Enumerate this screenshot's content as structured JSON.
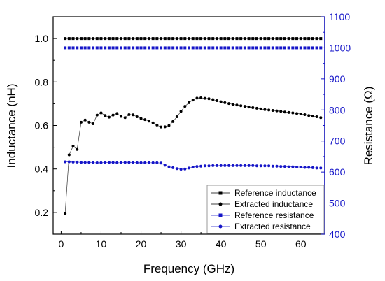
{
  "chart_data": {
    "type": "line",
    "xlabel": "Frequency (GHz)",
    "ylabel_left": "Inductance (nH)",
    "ylabel_right": "Resistance (Ω)",
    "xlim": [
      -2,
      66
    ],
    "ylim_left": [
      0.1,
      1.1
    ],
    "ylim_right": [
      400,
      1100
    ],
    "x_ticks": [
      0,
      10,
      20,
      30,
      40,
      50,
      60
    ],
    "y_ticks_left": [
      0.2,
      0.4,
      0.6,
      0.8,
      1.0
    ],
    "y_ticks_left_labels": [
      "0.2",
      "0.4",
      "0.6",
      "0.8",
      "1.0"
    ],
    "y_ticks_right": [
      400,
      500,
      600,
      700,
      800,
      900,
      1000,
      1100
    ],
    "colors": {
      "left_axis": "#000000",
      "right_axis": "#1515c8"
    },
    "legend_position": "bottom-right",
    "series": [
      {
        "name": "Reference inductance",
        "axis": "left",
        "color": "#000000",
        "marker": "square",
        "x": [
          1,
          2,
          3,
          4,
          5,
          6,
          7,
          8,
          9,
          10,
          11,
          12,
          13,
          14,
          15,
          16,
          17,
          18,
          19,
          20,
          21,
          22,
          23,
          24,
          25,
          26,
          27,
          28,
          29,
          30,
          31,
          32,
          33,
          34,
          35,
          36,
          37,
          38,
          39,
          40,
          41,
          42,
          43,
          44,
          45,
          46,
          47,
          48,
          49,
          50,
          51,
          52,
          53,
          54,
          55,
          56,
          57,
          58,
          59,
          60,
          61,
          62,
          63,
          64,
          65
        ],
        "y": [
          1.0,
          1.0,
          1.0,
          1.0,
          1.0,
          1.0,
          1.0,
          1.0,
          1.0,
          1.0,
          1.0,
          1.0,
          1.0,
          1.0,
          1.0,
          1.0,
          1.0,
          1.0,
          1.0,
          1.0,
          1.0,
          1.0,
          1.0,
          1.0,
          1.0,
          1.0,
          1.0,
          1.0,
          1.0,
          1.0,
          1.0,
          1.0,
          1.0,
          1.0,
          1.0,
          1.0,
          1.0,
          1.0,
          1.0,
          1.0,
          1.0,
          1.0,
          1.0,
          1.0,
          1.0,
          1.0,
          1.0,
          1.0,
          1.0,
          1.0,
          1.0,
          1.0,
          1.0,
          1.0,
          1.0,
          1.0,
          1.0,
          1.0,
          1.0,
          1.0,
          1.0,
          1.0,
          1.0,
          1.0,
          1.0
        ]
      },
      {
        "name": "Extracted inductance",
        "axis": "left",
        "color": "#000000",
        "marker": "circle",
        "x": [
          1,
          2,
          3,
          4,
          5,
          6,
          7,
          8,
          9,
          10,
          11,
          12,
          13,
          14,
          15,
          16,
          17,
          18,
          19,
          20,
          21,
          22,
          23,
          24,
          25,
          26,
          27,
          28,
          29,
          30,
          31,
          32,
          33,
          34,
          35,
          36,
          37,
          38,
          39,
          40,
          41,
          42,
          43,
          44,
          45,
          46,
          47,
          48,
          49,
          50,
          51,
          52,
          53,
          54,
          55,
          56,
          57,
          58,
          59,
          60,
          61,
          62,
          63,
          64,
          65
        ],
        "y": [
          0.195,
          0.465,
          0.505,
          0.49,
          0.615,
          0.625,
          0.615,
          0.608,
          0.648,
          0.658,
          0.646,
          0.638,
          0.648,
          0.655,
          0.642,
          0.636,
          0.65,
          0.649,
          0.64,
          0.632,
          0.627,
          0.62,
          0.612,
          0.602,
          0.593,
          0.594,
          0.6,
          0.618,
          0.64,
          0.665,
          0.688,
          0.705,
          0.717,
          0.726,
          0.727,
          0.725,
          0.723,
          0.719,
          0.714,
          0.709,
          0.705,
          0.701,
          0.697,
          0.694,
          0.691,
          0.688,
          0.685,
          0.682,
          0.679,
          0.676,
          0.673,
          0.671,
          0.669,
          0.667,
          0.665,
          0.662,
          0.66,
          0.658,
          0.655,
          0.653,
          0.65,
          0.646,
          0.643,
          0.64,
          0.636
        ]
      },
      {
        "name": "Reference resistance",
        "axis": "right",
        "color": "#1515c8",
        "marker": "square",
        "x": [
          1,
          2,
          3,
          4,
          5,
          6,
          7,
          8,
          9,
          10,
          11,
          12,
          13,
          14,
          15,
          16,
          17,
          18,
          19,
          20,
          21,
          22,
          23,
          24,
          25,
          26,
          27,
          28,
          29,
          30,
          31,
          32,
          33,
          34,
          35,
          36,
          37,
          38,
          39,
          40,
          41,
          42,
          43,
          44,
          45,
          46,
          47,
          48,
          49,
          50,
          51,
          52,
          53,
          54,
          55,
          56,
          57,
          58,
          59,
          60,
          61,
          62,
          63,
          64,
          65
        ],
        "y": [
          1000,
          1000,
          1000,
          1000,
          1000,
          1000,
          1000,
          1000,
          1000,
          1000,
          1000,
          1000,
          1000,
          1000,
          1000,
          1000,
          1000,
          1000,
          1000,
          1000,
          1000,
          1000,
          1000,
          1000,
          1000,
          1000,
          1000,
          1000,
          1000,
          1000,
          1000,
          1000,
          1000,
          1000,
          1000,
          1000,
          1000,
          1000,
          1000,
          1000,
          1000,
          1000,
          1000,
          1000,
          1000,
          1000,
          1000,
          1000,
          1000,
          1000,
          1000,
          1000,
          1000,
          1000,
          1000,
          1000,
          1000,
          1000,
          1000,
          1000,
          1000,
          1000,
          1000,
          1000,
          1000
        ]
      },
      {
        "name": "Extracted resistance",
        "axis": "right",
        "color": "#1515c8",
        "marker": "circle",
        "x": [
          1,
          2,
          3,
          4,
          5,
          6,
          7,
          8,
          9,
          10,
          11,
          12,
          13,
          14,
          15,
          16,
          17,
          18,
          19,
          20,
          21,
          22,
          23,
          24,
          25,
          26,
          27,
          28,
          29,
          30,
          31,
          32,
          33,
          34,
          35,
          36,
          37,
          38,
          39,
          40,
          41,
          42,
          43,
          44,
          45,
          46,
          47,
          48,
          49,
          50,
          51,
          52,
          53,
          54,
          55,
          56,
          57,
          58,
          59,
          60,
          61,
          62,
          63,
          64,
          65
        ],
        "y": [
          633,
          633,
          632,
          632,
          631,
          631,
          631,
          630,
          630,
          630,
          631,
          631,
          631,
          630,
          630,
          631,
          631,
          631,
          630,
          630,
          630,
          630,
          630,
          630,
          629,
          622,
          617,
          614,
          611,
          609,
          610,
          613,
          616,
          618,
          619,
          620,
          620,
          621,
          621,
          621,
          621,
          621,
          621,
          621,
          621,
          621,
          621,
          621,
          620,
          620,
          620,
          620,
          619,
          619,
          618,
          618,
          617,
          617,
          616,
          616,
          615,
          615,
          614,
          613,
          613
        ]
      }
    ]
  }
}
